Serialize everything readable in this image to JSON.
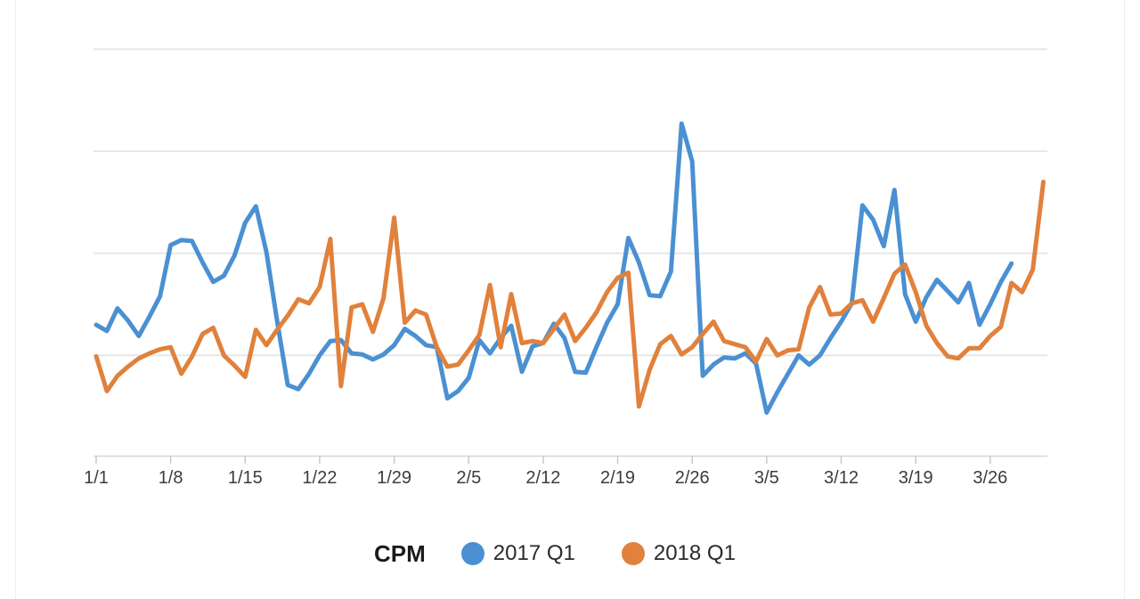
{
  "chart_data": {
    "type": "line",
    "title": "CPM",
    "units_note": "y values are in unlabeled gridline units (each horizontal gridline = 1 unit above baseline)",
    "x_axis": {
      "tick_labels": [
        "1/1",
        "1/8",
        "1/15",
        "1/22",
        "1/29",
        "2/5",
        "2/12",
        "2/19",
        "2/26",
        "3/5",
        "3/12",
        "3/19",
        "3/26"
      ],
      "tick_interval_days": 7,
      "points_are": "daily values starting Jan 1"
    },
    "y_axis": {
      "tick_labels_visible": false,
      "ylim": [
        0,
        4.35
      ],
      "gridline_values": [
        1,
        2,
        3,
        4
      ],
      "grid": true
    },
    "legend": {
      "position": "bottom-center",
      "title": "CPM"
    },
    "series": [
      {
        "name": "2017 Q1",
        "color": "#4a90d2",
        "start_day_index": 0,
        "values": [
          1.3,
          1.24,
          1.46,
          1.34,
          1.19,
          1.38,
          1.58,
          2.08,
          2.13,
          2.12,
          1.91,
          1.72,
          1.78,
          1.98,
          2.3,
          2.46,
          2.01,
          1.34,
          0.71,
          0.67,
          0.82,
          1.0,
          1.14,
          1.15,
          1.02,
          1.01,
          0.96,
          1.01,
          1.1,
          1.26,
          1.19,
          1.1,
          1.08,
          0.58,
          0.65,
          0.78,
          1.15,
          1.02,
          1.17,
          1.29,
          0.84,
          1.09,
          1.12,
          1.31,
          1.17,
          0.84,
          0.83,
          1.08,
          1.32,
          1.5,
          2.15,
          1.91,
          1.59,
          1.58,
          1.82,
          3.27,
          2.9,
          0.8,
          0.91,
          0.98,
          0.97,
          1.02,
          0.92,
          0.44,
          0.64,
          0.82,
          1.0,
          0.91,
          1.0,
          1.17,
          1.33,
          1.51,
          2.47,
          2.33,
          2.07,
          2.62,
          1.6,
          1.33,
          1.57,
          1.74,
          1.63,
          1.52,
          1.71,
          1.3,
          1.5,
          1.72,
          1.9
        ]
      },
      {
        "name": "2018 Q1",
        "color": "#e0813c",
        "start_day_index": 0,
        "values": [
          0.99,
          0.65,
          0.8,
          0.89,
          0.97,
          1.02,
          1.06,
          1.08,
          0.82,
          0.99,
          1.21,
          1.27,
          1.0,
          0.9,
          0.79,
          1.25,
          1.1,
          1.25,
          1.39,
          1.55,
          1.51,
          1.67,
          2.14,
          0.7,
          1.47,
          1.5,
          1.23,
          1.56,
          2.35,
          1.32,
          1.44,
          1.4,
          1.08,
          0.89,
          0.91,
          1.05,
          1.2,
          1.69,
          1.08,
          1.6,
          1.12,
          1.14,
          1.12,
          1.26,
          1.4,
          1.14,
          1.27,
          1.42,
          1.62,
          1.76,
          1.81,
          0.5,
          0.86,
          1.11,
          1.19,
          1.01,
          1.08,
          1.21,
          1.33,
          1.14,
          1.11,
          1.08,
          0.94,
          1.16,
          1.0,
          1.05,
          1.06,
          1.47,
          1.67,
          1.4,
          1.41,
          1.51,
          1.54,
          1.33,
          1.56,
          1.8,
          1.89,
          1.62,
          1.29,
          1.12,
          0.99,
          0.97,
          1.07,
          1.07,
          1.19,
          1.28,
          1.71,
          1.62,
          1.84,
          2.7
        ]
      }
    ]
  }
}
